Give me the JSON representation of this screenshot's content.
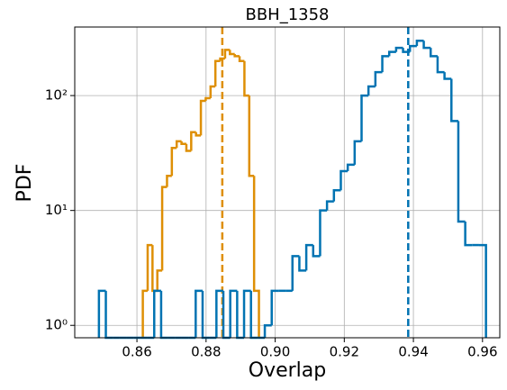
{
  "chart_data": {
    "type": "histogram",
    "title": "BBH_1358",
    "xlabel": "Overlap",
    "ylabel": "PDF",
    "xlim": [
      0.842,
      0.965
    ],
    "ylim": [
      0.78,
      395
    ],
    "log_y": true,
    "grid": true,
    "xticks": [
      0.86,
      0.88,
      {
        "value": 0.9,
        "label": "0.90"
      },
      0.92,
      0.94,
      0.96
    ],
    "yticks": [
      {
        "value": 1,
        "label": "10⁰"
      },
      {
        "value": 10,
        "label": "10¹"
      },
      {
        "value": 100,
        "label": "10²"
      }
    ],
    "series": [
      {
        "color": "#de8f05",
        "bins": [
          0.8617,
          0.8631,
          0.8645,
          0.8659,
          0.8673,
          0.8687,
          0.8701,
          0.8715,
          0.8729,
          0.8743,
          0.8757,
          0.8771,
          0.8785,
          0.8799,
          0.8813,
          0.8827,
          0.8841,
          0.8855,
          0.8869,
          0.8883,
          0.8897,
          0.8911,
          0.8925,
          0.8939,
          0.8953
        ],
        "values": [
          2,
          5,
          2,
          3,
          16,
          20,
          35,
          40,
          38,
          33,
          48,
          45,
          90,
          95,
          120,
          200,
          210,
          250,
          230,
          220,
          200,
          100,
          20,
          2
        ],
        "vline": 0.8847
      },
      {
        "color": "#0173b2",
        "bins": [
          0.849,
          0.851,
          0.853,
          0.855,
          0.857,
          0.859,
          0.861,
          0.863,
          0.865,
          0.867,
          0.869,
          0.871,
          0.873,
          0.875,
          0.877,
          0.879,
          0.881,
          0.883,
          0.885,
          0.887,
          0.889,
          0.891,
          0.893,
          0.895,
          0.897,
          0.899,
          0.901,
          0.903,
          0.905,
          0.907,
          0.909,
          0.911,
          0.913,
          0.915,
          0.917,
          0.919,
          0.921,
          0.923,
          0.925,
          0.927,
          0.929,
          0.931,
          0.933,
          0.935,
          0.937,
          0.939,
          0.941,
          0.943,
          0.945,
          0.947,
          0.949,
          0.951,
          0.953,
          0.955,
          0.957,
          0.959,
          0.961
        ],
        "values": [
          2,
          0,
          0,
          0,
          0,
          0,
          0,
          0,
          2,
          0,
          0,
          0,
          0,
          0,
          2,
          0,
          0,
          2,
          0,
          2,
          0,
          2,
          0,
          0,
          1,
          2,
          2,
          2,
          4,
          3,
          5,
          4,
          10,
          12,
          15,
          22,
          25,
          40,
          100,
          120,
          160,
          220,
          240,
          260,
          240,
          270,
          300,
          260,
          220,
          160,
          140,
          60,
          8,
          5,
          5,
          5
        ],
        "vline": 0.9385
      }
    ]
  }
}
